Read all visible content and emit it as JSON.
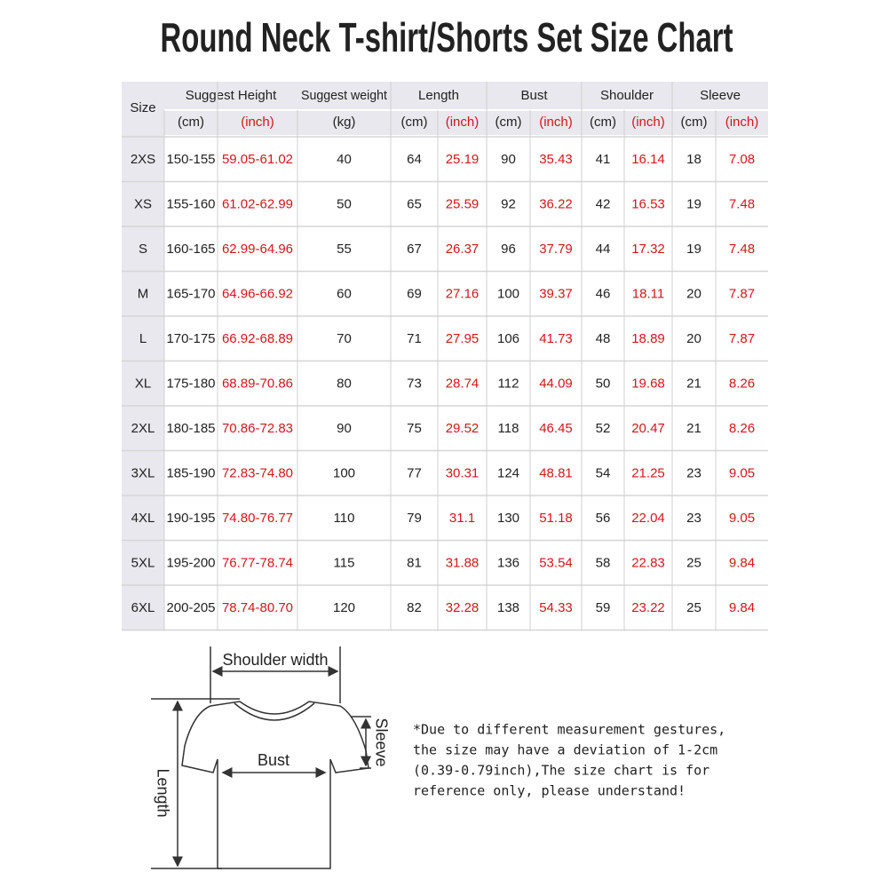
{
  "title": "Round Neck T-shirt/Shorts Set Size Chart",
  "table": {
    "headers": [
      "Size",
      "Suggest Height",
      "Suggest weight",
      "Length",
      "Bust",
      "Shoulder",
      "Sleeve"
    ],
    "units": [
      "(cm)",
      "(inch)",
      "(kg)",
      "(cm)",
      "(inch)",
      "(cm)",
      "(inch)",
      "(cm)",
      "(inch)",
      "(cm)",
      "(inch)"
    ],
    "rows": [
      [
        "2XS",
        "150-155",
        "59.05-61.02",
        "40",
        "64",
        "25.19",
        "90",
        "35.43",
        "41",
        "16.14",
        "18",
        "7.08"
      ],
      [
        "XS",
        "155-160",
        "61.02-62.99",
        "50",
        "65",
        "25.59",
        "92",
        "36.22",
        "42",
        "16.53",
        "19",
        "7.48"
      ],
      [
        "S",
        "160-165",
        "62.99-64.96",
        "55",
        "67",
        "26.37",
        "96",
        "37.79",
        "44",
        "17.32",
        "19",
        "7.48"
      ],
      [
        "M",
        "165-170",
        "64.96-66.92",
        "60",
        "69",
        "27.16",
        "100",
        "39.37",
        "46",
        "18.11",
        "20",
        "7.87"
      ],
      [
        "L",
        "170-175",
        "66.92-68.89",
        "70",
        "71",
        "27.95",
        "106",
        "41.73",
        "48",
        "18.89",
        "20",
        "7.87"
      ],
      [
        "XL",
        "175-180",
        "68.89-70.86",
        "80",
        "73",
        "28.74",
        "112",
        "44.09",
        "50",
        "19.68",
        "21",
        "8.26"
      ],
      [
        "2XL",
        "180-185",
        "70.86-72.83",
        "90",
        "75",
        "29.52",
        "118",
        "46.45",
        "52",
        "20.47",
        "21",
        "8.26"
      ],
      [
        "3XL",
        "185-190",
        "72.83-74.80",
        "100",
        "77",
        "30.31",
        "124",
        "48.81",
        "54",
        "21.25",
        "23",
        "9.05"
      ],
      [
        "4XL",
        "190-195",
        "74.80-76.77",
        "110",
        "79",
        "31.1",
        "130",
        "51.18",
        "56",
        "22.04",
        "23",
        "9.05"
      ],
      [
        "5XL",
        "195-200",
        "76.77-78.74",
        "115",
        "81",
        "31.88",
        "136",
        "53.54",
        "58",
        "22.83",
        "25",
        "9.84"
      ],
      [
        "6XL",
        "200-205",
        "78.74-80.70",
        "120",
        "82",
        "32.28",
        "138",
        "54.33",
        "59",
        "23.22",
        "25",
        "9.84"
      ]
    ]
  },
  "diagram": {
    "shoulder": "Shoulder width",
    "bust": "Bust",
    "length": "Length",
    "sleeve": "Sleeve"
  },
  "note": [
    "*Due to different measurement gestures,",
    "the size may have a deviation of 1-2cm",
    "(0.39-0.79inch),The size chart is for",
    "reference only, please understand!"
  ]
}
